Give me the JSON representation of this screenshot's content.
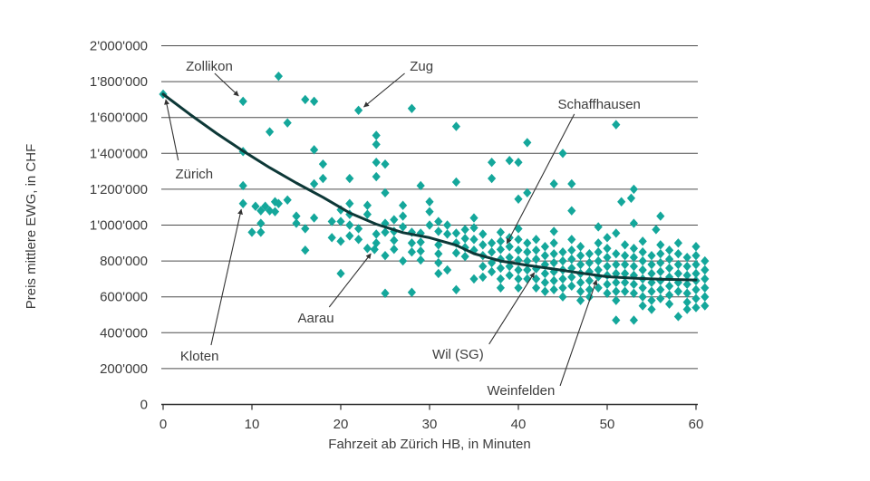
{
  "chart_data": {
    "type": "scatter",
    "title": "",
    "xlabel": "Fahrzeit ab Zürich HB, in Minuten",
    "ylabel": "Preis mittlere EWG, in CHF",
    "xlim": [
      0,
      60
    ],
    "ylim": [
      0,
      2000000
    ],
    "grid": "horizontal",
    "legend": "none",
    "marker": "diamond",
    "value_unit": "values in 1000 CHF",
    "colors": {
      "points": "#14a79b",
      "trend": "#0d3837",
      "grid": "#4d4d4d",
      "axis": "#2e2e2e",
      "text": "#3c3c3c",
      "annotation_line": "#333333"
    },
    "x_ticks": [
      0,
      10,
      20,
      30,
      40,
      50,
      60
    ],
    "y_ticks": [
      {
        "v": 0,
        "label": "0"
      },
      {
        "v": 200,
        "label": "200'000"
      },
      {
        "v": 400,
        "label": "400'000"
      },
      {
        "v": 600,
        "label": "600'000"
      },
      {
        "v": 800,
        "label": "800'000"
      },
      {
        "v": 1000,
        "label": "1'000'000"
      },
      {
        "v": 1200,
        "label": "1'200'000"
      },
      {
        "v": 1400,
        "label": "1'400'000"
      },
      {
        "v": 1600,
        "label": "1'600'000"
      },
      {
        "v": 1800,
        "label": "1'800'000"
      },
      {
        "v": 2000,
        "label": "2'000'000"
      }
    ],
    "trend": [
      [
        0,
        1730
      ],
      [
        3,
        1618
      ],
      [
        6,
        1512
      ],
      [
        9,
        1413
      ],
      [
        12,
        1320
      ],
      [
        15,
        1235
      ],
      [
        18,
        1155
      ],
      [
        21,
        1068
      ],
      [
        24,
        1005
      ],
      [
        27,
        958
      ],
      [
        30,
        930
      ],
      [
        33,
        888
      ],
      [
        35,
        841
      ],
      [
        38,
        800
      ],
      [
        41,
        776
      ],
      [
        44,
        755
      ],
      [
        47,
        733
      ],
      [
        50,
        712
      ],
      [
        53,
        704
      ],
      [
        56,
        698
      ],
      [
        60,
        694
      ]
    ],
    "annotations": [
      {
        "name": "zuerich",
        "label": "Zürich",
        "label_at": [
          3.5,
          1260
        ],
        "arrow": [
          [
            1.7,
            1361
          ],
          [
            0.3,
            1700
          ]
        ]
      },
      {
        "name": "zollikon",
        "label": "Zollikon",
        "label_at": [
          5.2,
          1861
        ],
        "arrow": [
          [
            5.8,
            1846
          ],
          [
            8.5,
            1720
          ]
        ]
      },
      {
        "name": "zug",
        "label": "Zug",
        "label_at": [
          29.1,
          1861
        ],
        "arrow": [
          [
            27.2,
            1846
          ],
          [
            22.6,
            1659
          ]
        ]
      },
      {
        "name": "schaffhausen",
        "label": "Schaffhausen",
        "label_at": [
          49.1,
          1649
        ],
        "arrow": [
          [
            46.3,
            1619
          ],
          [
            38.7,
            897
          ]
        ]
      },
      {
        "name": "kloten",
        "label": "Kloten",
        "label_at": [
          4.1,
          245
        ],
        "arrow": [
          [
            5.4,
            331
          ],
          [
            8.8,
            1088
          ]
        ]
      },
      {
        "name": "aarau",
        "label": "Aarau",
        "label_at": [
          17.2,
          457
        ],
        "arrow": [
          [
            18.7,
            543
          ],
          [
            23.4,
            841
          ]
        ]
      },
      {
        "name": "wil-sg",
        "label": "Wil (SG)",
        "label_at": [
          33.2,
          255
        ],
        "arrow": [
          [
            36.7,
            336
          ],
          [
            41.8,
            735
          ]
        ]
      },
      {
        "name": "weinfelden",
        "label": "Weinfelden",
        "label_at": [
          40.3,
          53
        ],
        "arrow": [
          [
            44.7,
            104
          ],
          [
            48.8,
            694
          ]
        ]
      }
    ],
    "points": [
      [
        0,
        1730
      ],
      [
        9,
        1690
      ],
      [
        9,
        1410
      ],
      [
        9,
        1220
      ],
      [
        9,
        1120
      ],
      [
        13,
        1830
      ],
      [
        12,
        1520
      ],
      [
        14,
        1570
      ],
      [
        16,
        1700
      ],
      [
        17,
        1690
      ],
      [
        17,
        1420
      ],
      [
        18,
        1340
      ],
      [
        17,
        1230
      ],
      [
        18,
        1260
      ],
      [
        10.4,
        1105
      ],
      [
        11.5,
        1105
      ],
      [
        12.6,
        1130
      ],
      [
        12.6,
        1075
      ],
      [
        11,
        1080
      ],
      [
        12,
        1080
      ],
      [
        11,
        1010
      ],
      [
        11,
        960
      ],
      [
        13,
        1120
      ],
      [
        14,
        1140
      ],
      [
        15,
        1050
      ],
      [
        15,
        1010
      ],
      [
        17,
        1040
      ],
      [
        19,
        1020
      ],
      [
        16,
        980
      ],
      [
        16,
        860
      ],
      [
        19,
        930
      ],
      [
        10,
        960
      ],
      [
        20,
        1085
      ],
      [
        20,
        1020
      ],
      [
        20,
        910
      ],
      [
        20,
        730
      ],
      [
        21,
        1260
      ],
      [
        21,
        1120
      ],
      [
        21,
        1060
      ],
      [
        21,
        1000
      ],
      [
        21,
        940
      ],
      [
        22,
        1640
      ],
      [
        22,
        980
      ],
      [
        22,
        920
      ],
      [
        23,
        1110
      ],
      [
        23,
        1060
      ],
      [
        23,
        870
      ],
      [
        24,
        1500
      ],
      [
        24,
        1450
      ],
      [
        24,
        1350
      ],
      [
        24,
        1270
      ],
      [
        24,
        950
      ],
      [
        24,
        900
      ],
      [
        23.8,
        864
      ],
      [
        25,
        1340
      ],
      [
        25,
        1180
      ],
      [
        25,
        1010
      ],
      [
        25,
        960
      ],
      [
        25,
        830
      ],
      [
        25,
        620
      ],
      [
        26,
        1030
      ],
      [
        26,
        965
      ],
      [
        26,
        915
      ],
      [
        26,
        865
      ],
      [
        27,
        1110
      ],
      [
        27,
        1050
      ],
      [
        27,
        990
      ],
      [
        27,
        800
      ],
      [
        28,
        1650
      ],
      [
        28,
        960
      ],
      [
        28,
        900
      ],
      [
        28,
        850
      ],
      [
        28,
        625
      ],
      [
        29,
        1220
      ],
      [
        29,
        955
      ],
      [
        29,
        905
      ],
      [
        29,
        855
      ],
      [
        29,
        805
      ],
      [
        30,
        1130
      ],
      [
        30,
        1075
      ],
      [
        30,
        1000
      ],
      [
        31,
        1020
      ],
      [
        31,
        965
      ],
      [
        31,
        890
      ],
      [
        31,
        840
      ],
      [
        31,
        790
      ],
      [
        31,
        730
      ],
      [
        32,
        1000
      ],
      [
        32,
        950
      ],
      [
        32,
        750
      ],
      [
        33,
        1550
      ],
      [
        33,
        1240
      ],
      [
        33,
        955
      ],
      [
        33,
        900
      ],
      [
        33,
        845
      ],
      [
        33,
        640
      ],
      [
        34,
        975
      ],
      [
        34,
        925
      ],
      [
        34,
        875
      ],
      [
        34,
        825
      ],
      [
        35,
        1040
      ],
      [
        35,
        985
      ],
      [
        35,
        920
      ],
      [
        35,
        860
      ],
      [
        35,
        700
      ],
      [
        36,
        950
      ],
      [
        36,
        890
      ],
      [
        36,
        830
      ],
      [
        36,
        770
      ],
      [
        36,
        710
      ],
      [
        37,
        1350
      ],
      [
        37,
        1260
      ],
      [
        37,
        900
      ],
      [
        37,
        850
      ],
      [
        37,
        790
      ],
      [
        37,
        740
      ],
      [
        38,
        960
      ],
      [
        38,
        910
      ],
      [
        38,
        864
      ],
      [
        38,
        810
      ],
      [
        38,
        760
      ],
      [
        38,
        700
      ],
      [
        38,
        650
      ],
      [
        39,
        1360
      ],
      [
        39,
        930
      ],
      [
        39,
        880
      ],
      [
        39,
        820
      ],
      [
        39,
        770
      ],
      [
        39,
        720
      ],
      [
        40,
        1350
      ],
      [
        40,
        1145
      ],
      [
        40,
        980
      ],
      [
        40,
        920
      ],
      [
        40,
        860
      ],
      [
        40,
        805
      ],
      [
        40,
        750
      ],
      [
        40,
        700
      ],
      [
        40,
        650
      ],
      [
        41,
        1460
      ],
      [
        41,
        1180
      ],
      [
        41,
        900
      ],
      [
        41,
        850
      ],
      [
        41,
        800
      ],
      [
        41,
        750
      ],
      [
        41,
        700
      ],
      [
        42,
        920
      ],
      [
        42,
        860
      ],
      [
        42,
        810
      ],
      [
        42,
        757
      ],
      [
        42,
        700
      ],
      [
        42,
        650
      ],
      [
        43,
        880
      ],
      [
        43,
        830
      ],
      [
        43,
        780
      ],
      [
        43,
        730
      ],
      [
        43,
        680
      ],
      [
        43,
        630
      ],
      [
        44,
        1230
      ],
      [
        44,
        965
      ],
      [
        44,
        900
      ],
      [
        44,
        840
      ],
      [
        44,
        790
      ],
      [
        44,
        740
      ],
      [
        44,
        690
      ],
      [
        44,
        640
      ],
      [
        45,
        1400
      ],
      [
        45,
        850
      ],
      [
        45,
        800
      ],
      [
        45,
        750
      ],
      [
        45,
        700
      ],
      [
        45,
        650
      ],
      [
        45,
        600
      ],
      [
        46,
        1230
      ],
      [
        46,
        1080
      ],
      [
        46,
        920
      ],
      [
        46,
        860
      ],
      [
        46,
        810
      ],
      [
        46,
        760
      ],
      [
        46,
        710
      ],
      [
        46,
        660
      ],
      [
        47,
        880
      ],
      [
        47,
        830
      ],
      [
        47,
        780
      ],
      [
        47,
        730
      ],
      [
        47,
        680
      ],
      [
        47,
        630
      ],
      [
        47,
        580
      ],
      [
        48,
        840
      ],
      [
        48,
        790
      ],
      [
        48,
        740
      ],
      [
        48,
        690
      ],
      [
        48,
        640
      ],
      [
        48,
        600
      ],
      [
        49,
        990
      ],
      [
        49,
        900
      ],
      [
        49,
        850
      ],
      [
        49,
        800
      ],
      [
        49,
        750
      ],
      [
        49,
        712
      ],
      [
        49,
        650
      ],
      [
        50,
        930
      ],
      [
        50,
        870
      ],
      [
        50,
        820
      ],
      [
        50,
        770
      ],
      [
        50,
        720
      ],
      [
        50,
        670
      ],
      [
        50,
        620
      ],
      [
        51,
        1560
      ],
      [
        51,
        955
      ],
      [
        51,
        840
      ],
      [
        51,
        780
      ],
      [
        51,
        730
      ],
      [
        51,
        680
      ],
      [
        51,
        630
      ],
      [
        51,
        580
      ],
      [
        51,
        470
      ],
      [
        51.6,
        1130
      ],
      [
        52.7,
        1150
      ],
      [
        52,
        890
      ],
      [
        52,
        830
      ],
      [
        52,
        780
      ],
      [
        52,
        730
      ],
      [
        52,
        680
      ],
      [
        52,
        630
      ],
      [
        53,
        1200
      ],
      [
        53,
        1010
      ],
      [
        53,
        870
      ],
      [
        53,
        820
      ],
      [
        53,
        770
      ],
      [
        53,
        720
      ],
      [
        53,
        670
      ],
      [
        53,
        620
      ],
      [
        53,
        470
      ],
      [
        54,
        910
      ],
      [
        54,
        850
      ],
      [
        54,
        800
      ],
      [
        54,
        750
      ],
      [
        54,
        700
      ],
      [
        54,
        650
      ],
      [
        54,
        600
      ],
      [
        54,
        550
      ],
      [
        55,
        830
      ],
      [
        55,
        780
      ],
      [
        55,
        730
      ],
      [
        55,
        680
      ],
      [
        55,
        630
      ],
      [
        55,
        580
      ],
      [
        55,
        530
      ],
      [
        55.5,
        975
      ],
      [
        56,
        1050
      ],
      [
        56,
        890
      ],
      [
        56,
        840
      ],
      [
        56,
        790
      ],
      [
        56,
        740
      ],
      [
        56,
        690
      ],
      [
        56,
        640
      ],
      [
        56,
        590
      ],
      [
        57,
        860
      ],
      [
        57,
        810
      ],
      [
        57,
        760
      ],
      [
        57,
        710
      ],
      [
        57,
        660
      ],
      [
        57,
        610
      ],
      [
        57,
        560
      ],
      [
        58,
        900
      ],
      [
        58,
        840
      ],
      [
        58,
        780
      ],
      [
        58,
        730
      ],
      [
        58,
        680
      ],
      [
        58,
        630
      ],
      [
        58,
        490
      ],
      [
        59,
        820
      ],
      [
        59,
        770
      ],
      [
        59,
        720
      ],
      [
        59,
        670
      ],
      [
        59,
        620
      ],
      [
        59,
        570
      ],
      [
        59,
        530
      ],
      [
        60,
        880
      ],
      [
        60,
        830
      ],
      [
        60,
        780
      ],
      [
        60,
        730
      ],
      [
        60,
        690
      ],
      [
        60,
        640
      ],
      [
        60,
        590
      ],
      [
        60,
        540
      ],
      [
        61,
        800
      ],
      [
        61,
        750
      ],
      [
        61,
        700
      ],
      [
        61,
        650
      ],
      [
        61,
        600
      ],
      [
        61,
        550
      ]
    ]
  }
}
